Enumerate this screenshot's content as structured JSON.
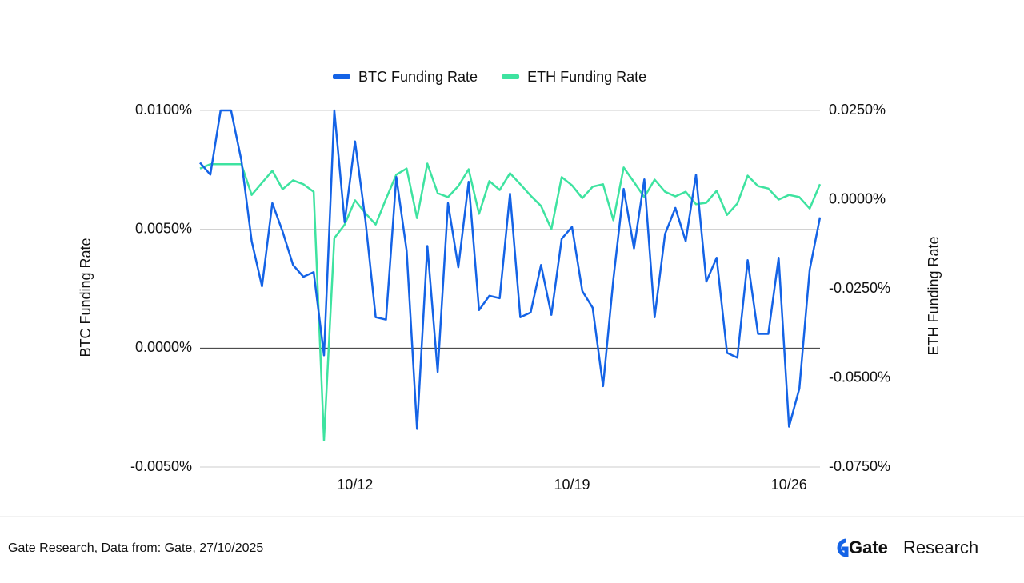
{
  "chart_data": {
    "type": "line",
    "categories": [
      null,
      null,
      null,
      null,
      null,
      null,
      null,
      null,
      null,
      null,
      null,
      null,
      null,
      null,
      null,
      "10/12",
      null,
      null,
      null,
      null,
      null,
      null,
      null,
      null,
      null,
      null,
      null,
      null,
      null,
      null,
      null,
      null,
      null,
      null,
      null,
      null,
      "10/19",
      null,
      null,
      null,
      null,
      null,
      null,
      null,
      null,
      null,
      null,
      null,
      null,
      null,
      null,
      null,
      null,
      null,
      null,
      null,
      null,
      "10/26",
      null,
      null,
      null
    ],
    "series": [
      {
        "name": "BTC Funding Rate",
        "color": "#1463e6",
        "axis": "y",
        "values": [
          0.0078,
          0.0073,
          0.01,
          0.01,
          0.0079,
          0.0045,
          0.0026,
          0.0061,
          0.0049,
          0.0035,
          0.003,
          0.0032,
          -0.0003,
          0.01,
          0.0053,
          0.0087,
          0.0054,
          0.0013,
          0.0012,
          0.0072,
          0.0041,
          -0.0034,
          0.0043,
          -0.001,
          0.0061,
          0.0034,
          0.007,
          0.0016,
          0.0022,
          0.0021,
          0.0065,
          0.0013,
          0.0015,
          0.0035,
          0.0014,
          0.0046,
          0.0051,
          0.0024,
          0.0017,
          -0.0016,
          0.0029,
          0.0067,
          0.0042,
          0.0071,
          0.0013,
          0.0048,
          0.0059,
          0.0045,
          0.0073,
          0.0028,
          0.0038,
          -0.0002,
          -0.0004,
          0.0037,
          0.0006,
          0.0006,
          0.0038,
          -0.0033,
          -0.0017,
          0.0033,
          0.0055
        ]
      },
      {
        "name": "ETH  Funding Rate",
        "color": "#3ee3a0",
        "axis": "y2",
        "values": [
          0.0087,
          0.0099,
          0.0099,
          0.0099,
          0.0099,
          0.0013,
          0.0047,
          0.0081,
          0.0029,
          0.0054,
          0.0043,
          0.0022,
          -0.0675,
          -0.0108,
          -0.007,
          -0.0002,
          -0.0038,
          -0.007,
          0.0002,
          0.007,
          0.0087,
          -0.0052,
          0.0101,
          0.0018,
          0.0007,
          0.0038,
          0.0085,
          -0.004,
          0.0052,
          0.0027,
          0.0074,
          0.0043,
          0.0011,
          -0.0018,
          -0.0083,
          0.0063,
          0.004,
          0.0004,
          0.0036,
          0.0043,
          -0.0058,
          0.009,
          0.0049,
          0.0007,
          0.0056,
          0.0022,
          0.0009,
          0.0022,
          -0.0013,
          -0.0009,
          0.0025,
          -0.0043,
          -0.0011,
          0.0067,
          0.0038,
          0.0031,
          0.0,
          0.0013,
          0.0007,
          -0.0025,
          0.0043
        ]
      }
    ],
    "ylabel": "BTC  Funding Rate",
    "y2label": "ETH Funding Rate",
    "ylim": [
      -0.005,
      0.01
    ],
    "yticks": [
      {
        "value": -0.005,
        "label": "-0.0050%"
      },
      {
        "value": 0,
        "label": "0.0000%"
      },
      {
        "value": 0.005,
        "label": "0.0050%"
      },
      {
        "value": 0.01,
        "label": "0.0100%"
      }
    ],
    "y2lim": [
      -0.075,
      0.025
    ],
    "y2ticks": [
      {
        "value": -0.075,
        "label": "-0.0750%"
      },
      {
        "value": -0.05,
        "label": "-0.0500%"
      },
      {
        "value": -0.025,
        "label": "-0.0250%"
      },
      {
        "value": 0,
        "label": "0.0000%"
      },
      {
        "value": 0.025,
        "label": "0.0250%"
      }
    ],
    "grid": true,
    "legend": "top"
  },
  "footer": {
    "source": "Gate Research, Data from: Gate, 27/10/2025",
    "logo_brand": "Gate",
    "logo_suffix": "Research"
  }
}
